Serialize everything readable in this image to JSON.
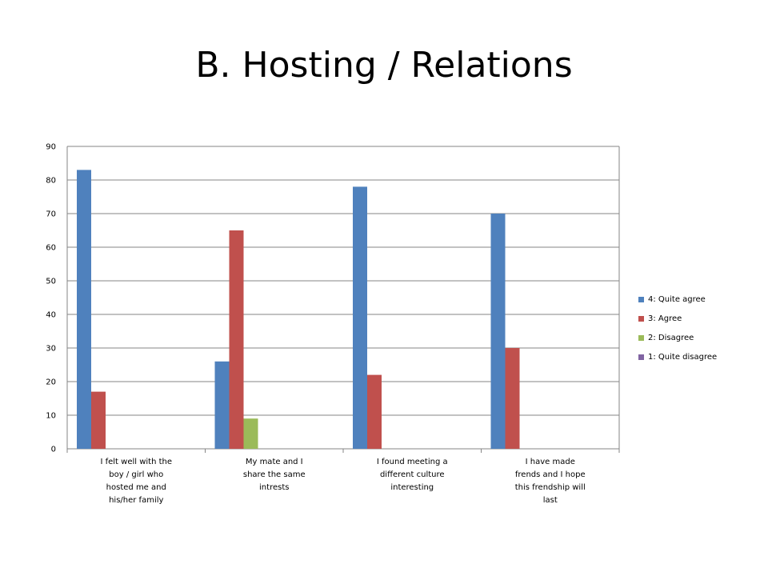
{
  "title": "B. Hosting / Relations",
  "chart_data": {
    "type": "bar",
    "categories": [
      "I felt well with the boy / girl who hosted me and his/her family",
      "My mate and I share the same intrests",
      "I found meeting a different culture interesting",
      "I have made frends and I hope this frendship will last"
    ],
    "category_lines": [
      [
        "I felt well with the",
        "boy / girl who",
        "hosted me and",
        "his/her family"
      ],
      [
        "My mate and I",
        "share the same",
        "intrests"
      ],
      [
        "I found meeting a",
        "different culture",
        "interesting"
      ],
      [
        "I have made",
        "frends and I hope",
        "this frendship will",
        "last"
      ]
    ],
    "series": [
      {
        "name": "4: Quite agree",
        "color": "#4F81BD",
        "values": [
          83,
          26,
          78,
          70
        ]
      },
      {
        "name": "3: Agree",
        "color": "#C0504D",
        "values": [
          17,
          65,
          22,
          30
        ]
      },
      {
        "name": "2: Disagree",
        "color": "#9BBB59",
        "values": [
          0,
          9,
          0,
          0
        ]
      },
      {
        "name": "1: Quite disagree",
        "color": "#8064A2",
        "values": [
          0,
          0,
          0,
          0
        ]
      }
    ],
    "ylim": [
      0,
      90
    ],
    "yticks": [
      0,
      10,
      20,
      30,
      40,
      50,
      60,
      70,
      80,
      90
    ],
    "grid": true,
    "legend_position": "right"
  }
}
